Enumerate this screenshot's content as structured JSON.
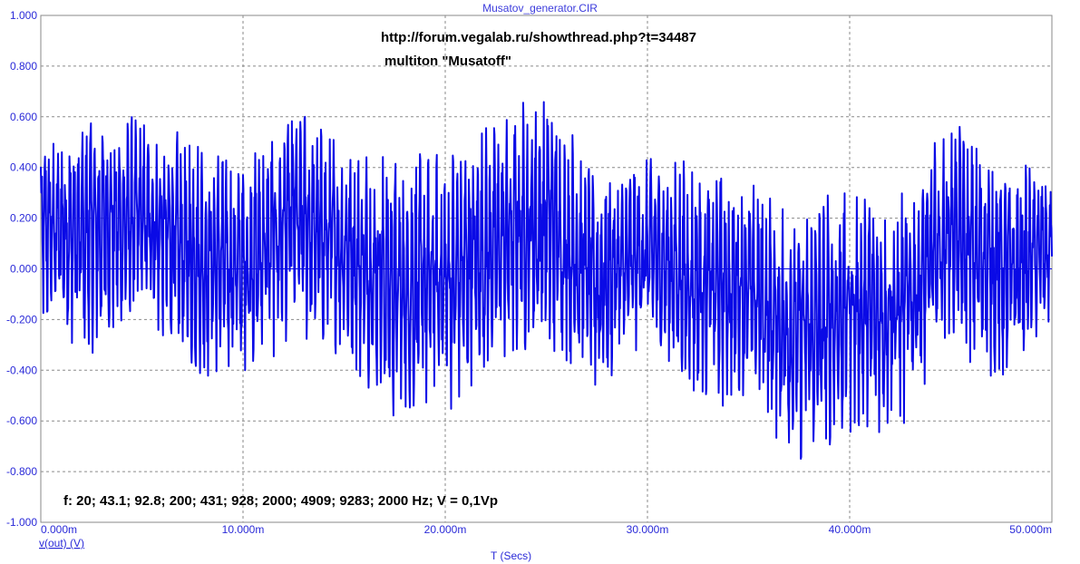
{
  "window": {
    "title": "Musatov_generator.CIR"
  },
  "colors": {
    "trace": "#0a0ae6",
    "grid": "#8a8a8a",
    "axis_text": "#2a2ad8",
    "background": "#ffffff"
  },
  "chart_data": {
    "type": "line",
    "title": "Musatov_generator.CIR",
    "xlabel": "T (Secs)",
    "ylabel": "",
    "legend": [
      "v(out) (V)"
    ],
    "xlim": [
      0,
      0.05
    ],
    "ylim": [
      -1.0,
      1.0
    ],
    "grid": true,
    "x_ticks": [
      0,
      0.01,
      0.02,
      0.03,
      0.04,
      0.05
    ],
    "x_tick_labels": [
      "0.000m",
      "10.000m",
      "20.000m",
      "30.000m",
      "40.000m",
      "50.000m"
    ],
    "y_ticks": [
      1.0,
      0.8,
      0.6,
      0.4,
      0.2,
      0.0,
      -0.2,
      -0.4,
      -0.6,
      -0.8,
      -1.0
    ],
    "y_tick_labels": [
      "1.000",
      "0.800",
      "0.600",
      "0.400",
      "0.200",
      "0.000",
      "-0.200",
      "-0.400",
      "-0.600",
      "-0.800",
      "-1.000"
    ],
    "annotations": [
      "http://forum.vegalab.ru/showthread.php?t=34487",
      "multiton \"Musatoff\"",
      "f: 20; 43.1; 92.8; 200; 431; 928; 2000; 4909; 9283; 2000 Hz;  V = 0,1Vp"
    ],
    "tones": {
      "frequencies_hz": [
        20,
        43.1,
        92.8,
        200,
        431,
        928,
        2000,
        4909,
        9283,
        2000
      ],
      "amplitude_vp": 0.1
    },
    "series": [
      {
        "name": "v(out) (V)",
        "x": [
          0.0,
          0.0025,
          0.005,
          0.0075,
          0.01,
          0.0125,
          0.015,
          0.0175,
          0.02,
          0.0225,
          0.025,
          0.0275,
          0.03,
          0.0325,
          0.035,
          0.0375,
          0.04,
          0.0425,
          0.045,
          0.0475,
          0.05
        ],
        "y_envelope_max": [
          0.55,
          0.62,
          0.61,
          0.55,
          0.45,
          0.68,
          0.52,
          0.45,
          0.5,
          0.58,
          0.75,
          0.4,
          0.45,
          0.46,
          0.39,
          0.26,
          0.35,
          0.3,
          0.62,
          0.45,
          0.4
        ],
        "y_envelope_min": [
          -0.25,
          -0.35,
          -0.2,
          -0.48,
          -0.43,
          -0.3,
          -0.35,
          -0.63,
          -0.6,
          -0.4,
          -0.35,
          -0.52,
          -0.3,
          -0.56,
          -0.52,
          -0.8,
          -0.67,
          -0.66,
          -0.3,
          -0.5,
          -0.25
        ]
      }
    ]
  }
}
